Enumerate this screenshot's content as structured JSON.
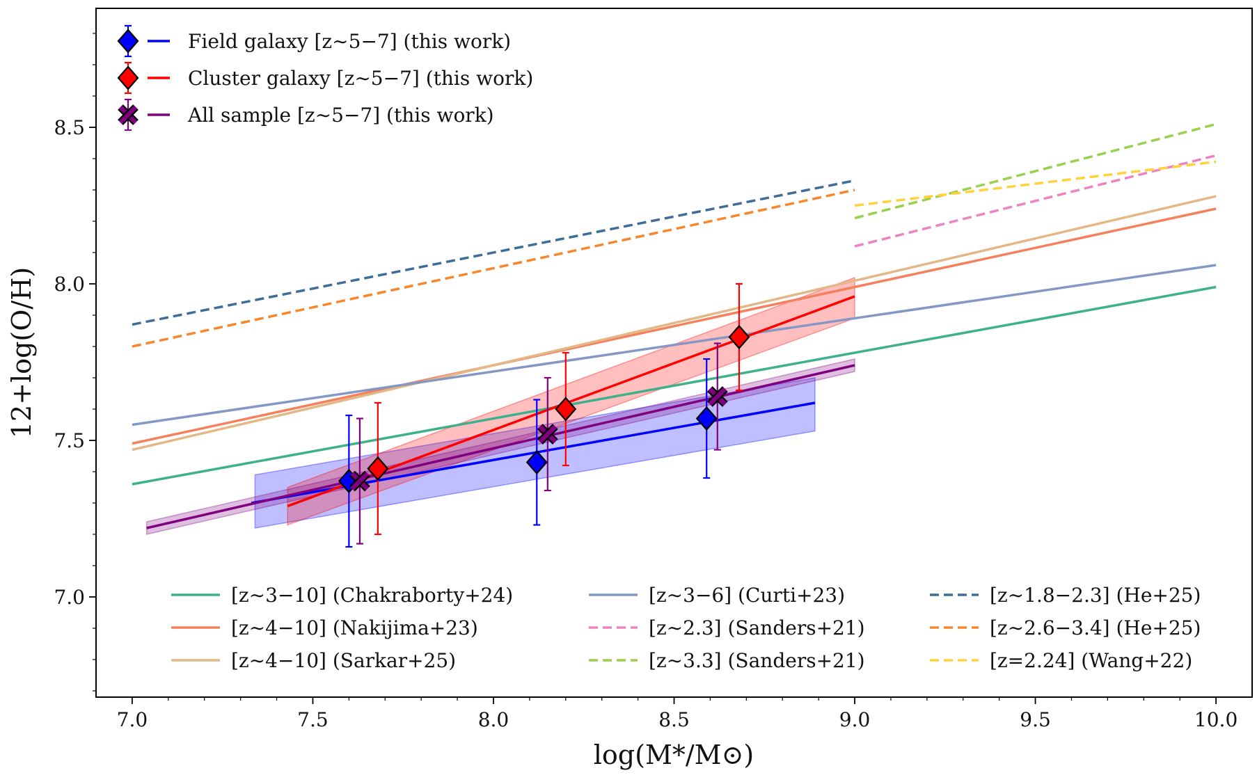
{
  "chart_data": {
    "type": "line",
    "title": "",
    "xlabel": "log(M*/M⊙)",
    "ylabel": "12+log(O/H)",
    "xlim": [
      6.9,
      10.1
    ],
    "ylim": [
      6.68,
      8.88
    ],
    "xticks": [
      "7.0",
      "7.5",
      "8.0",
      "8.5",
      "9.0",
      "9.5",
      "10.0"
    ],
    "yticks": [
      "7.0",
      "7.5",
      "8.0",
      "8.5"
    ],
    "grid": false,
    "legend_top_placement": "top-left",
    "legend_bottom_placement": "bottom-right",
    "this_work": [
      {
        "name": "Field galaxy [z∼5−7] (this work)",
        "color": "#0000ff",
        "marker": "diamond",
        "points": [
          {
            "x": 7.6,
            "y": 7.37,
            "yerr_low": 0.21,
            "yerr_high": 0.21
          },
          {
            "x": 8.12,
            "y": 7.43,
            "yerr_low": 0.2,
            "yerr_high": 0.2
          },
          {
            "x": 8.59,
            "y": 7.57,
            "yerr_low": 0.19,
            "yerr_high": 0.19
          }
        ],
        "fit": {
          "x": [
            7.33,
            8.89
          ],
          "y": [
            7.3,
            7.62
          ]
        },
        "band": {
          "x": [
            7.34,
            8.89
          ],
          "upper": [
            7.39,
            7.7
          ],
          "lower": [
            7.22,
            7.53
          ]
        }
      },
      {
        "name": "Cluster galaxy [z∼5−7] (this work)",
        "color": "#ff0000",
        "marker": "diamond",
        "points": [
          {
            "x": 7.68,
            "y": 7.41,
            "yerr_low": 0.21,
            "yerr_high": 0.21
          },
          {
            "x": 8.2,
            "y": 7.6,
            "yerr_low": 0.18,
            "yerr_high": 0.18
          },
          {
            "x": 8.68,
            "y": 7.83,
            "yerr_low": 0.17,
            "yerr_high": 0.17
          }
        ],
        "fit": {
          "x": [
            7.43,
            9.0
          ],
          "y": [
            7.29,
            7.96
          ]
        },
        "band": {
          "x": [
            7.43,
            9.0
          ],
          "upper": [
            7.35,
            8.02
          ],
          "lower": [
            7.23,
            7.89
          ]
        }
      },
      {
        "name": "All sample [z∼5−7] (this work)",
        "color": "#800080",
        "marker": "x",
        "points": [
          {
            "x": 7.63,
            "y": 7.37,
            "yerr_low": 0.2,
            "yerr_high": 0.2
          },
          {
            "x": 8.15,
            "y": 7.52,
            "yerr_low": 0.18,
            "yerr_high": 0.18
          },
          {
            "x": 8.62,
            "y": 7.64,
            "yerr_low": 0.17,
            "yerr_high": 0.17
          }
        ],
        "fit": {
          "x": [
            7.04,
            9.0
          ],
          "y": [
            7.22,
            7.74
          ]
        },
        "band": {
          "x": [
            7.04,
            9.0
          ],
          "upper": [
            7.24,
            7.76
          ],
          "lower": [
            7.2,
            7.72
          ]
        }
      }
    ],
    "literature": [
      {
        "name": "[z∼3−10] (Chakraborty+24)",
        "color": "#3fb08c",
        "dashed": false,
        "x": [
          7.0,
          10.0
        ],
        "y": [
          7.36,
          7.99
        ]
      },
      {
        "name": "[z∼4−10] (Nakijima+23)",
        "color": "#f4805d",
        "dashed": false,
        "x": [
          7.0,
          10.0
        ],
        "y": [
          7.49,
          8.24
        ]
      },
      {
        "name": "[z∼4−10] (Sarkar+25)",
        "color": "#e4b787",
        "dashed": false,
        "x": [
          7.0,
          10.0
        ],
        "y": [
          7.47,
          8.28
        ]
      },
      {
        "name": "[z∼3−6] (Curti+23)",
        "color": "#8597c7",
        "dashed": false,
        "x": [
          7.0,
          10.0
        ],
        "y": [
          7.55,
          8.06
        ]
      },
      {
        "name": "[z∼2.3] (Sanders+21)",
        "color": "#ec83c2",
        "dashed": true,
        "x": [
          9.0,
          10.0
        ],
        "y": [
          8.12,
          8.41
        ]
      },
      {
        "name": "[z∼3.3] (Sanders+21)",
        "color": "#99d04c",
        "dashed": true,
        "x": [
          9.0,
          10.0
        ],
        "y": [
          8.21,
          8.51
        ]
      },
      {
        "name": "[z∼1.8−2.3] (He+25)",
        "color": "#3d6d98",
        "dashed": true,
        "x": [
          7.0,
          9.0
        ],
        "y": [
          7.87,
          8.33
        ]
      },
      {
        "name": "[z∼2.6−3.4] (He+25)",
        "color": "#f7862d",
        "dashed": true,
        "x": [
          7.0,
          9.0
        ],
        "y": [
          7.8,
          8.3
        ]
      },
      {
        "name": "[z=2.24] (Wang+22)",
        "color": "#ffd23a",
        "dashed": true,
        "x": [
          9.0,
          10.0
        ],
        "y": [
          8.25,
          8.39
        ]
      }
    ]
  }
}
